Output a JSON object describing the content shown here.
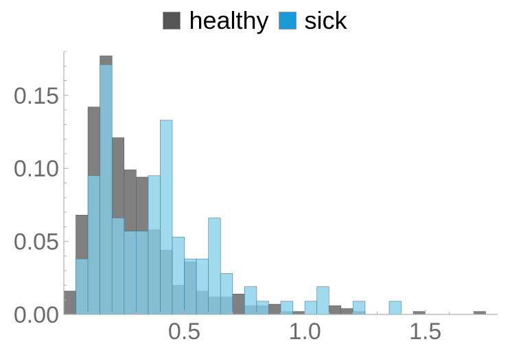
{
  "chart_data": {
    "type": "bar",
    "title": "",
    "xlabel": "",
    "ylabel": "",
    "bin_width": 0.05,
    "bin_start": 0.0,
    "xlim": [
      0.0,
      1.8
    ],
    "ylim": [
      0.0,
      0.18
    ],
    "xticks": [
      0.5,
      1.0,
      1.5
    ],
    "xtick_labels": [
      "0.5",
      "1.0",
      "1.5"
    ],
    "yticks": [
      0.0,
      0.05,
      0.1,
      0.15
    ],
    "ytick_labels": [
      "0.00",
      "0.05",
      "0.10",
      "0.15"
    ],
    "legend_position": "top",
    "grid": false,
    "series": [
      {
        "name": "healthy",
        "color": "#808080",
        "swatch_color": "#555555",
        "values": [
          0.016,
          0.068,
          0.142,
          0.177,
          0.121,
          0.099,
          0.094,
          0.058,
          0.044,
          0.02,
          0.036,
          0.016,
          0.012,
          0.012,
          0.014,
          0.006,
          0.006,
          0.007,
          0.002,
          0.002,
          0.0,
          0.0,
          0.006,
          0.004,
          0.002,
          0.0,
          0.0,
          0.0,
          0.0,
          0.002,
          0.0,
          0.0,
          0.0,
          0.0,
          0.002
        ]
      },
      {
        "name": "sick",
        "color": "#87CEEB",
        "swatch_color": "#1a9ad6",
        "values": [
          0.0,
          0.038,
          0.095,
          0.171,
          0.066,
          0.057,
          0.057,
          0.095,
          0.133,
          0.053,
          0.038,
          0.038,
          0.066,
          0.028,
          0.0,
          0.019,
          0.009,
          0.0,
          0.009,
          0.0,
          0.009,
          0.019,
          0.0,
          0.0,
          0.009,
          0.0,
          0.0,
          0.009,
          0.0,
          0.0,
          0.0,
          0.0,
          0.0,
          0.0,
          0.0
        ]
      }
    ]
  }
}
